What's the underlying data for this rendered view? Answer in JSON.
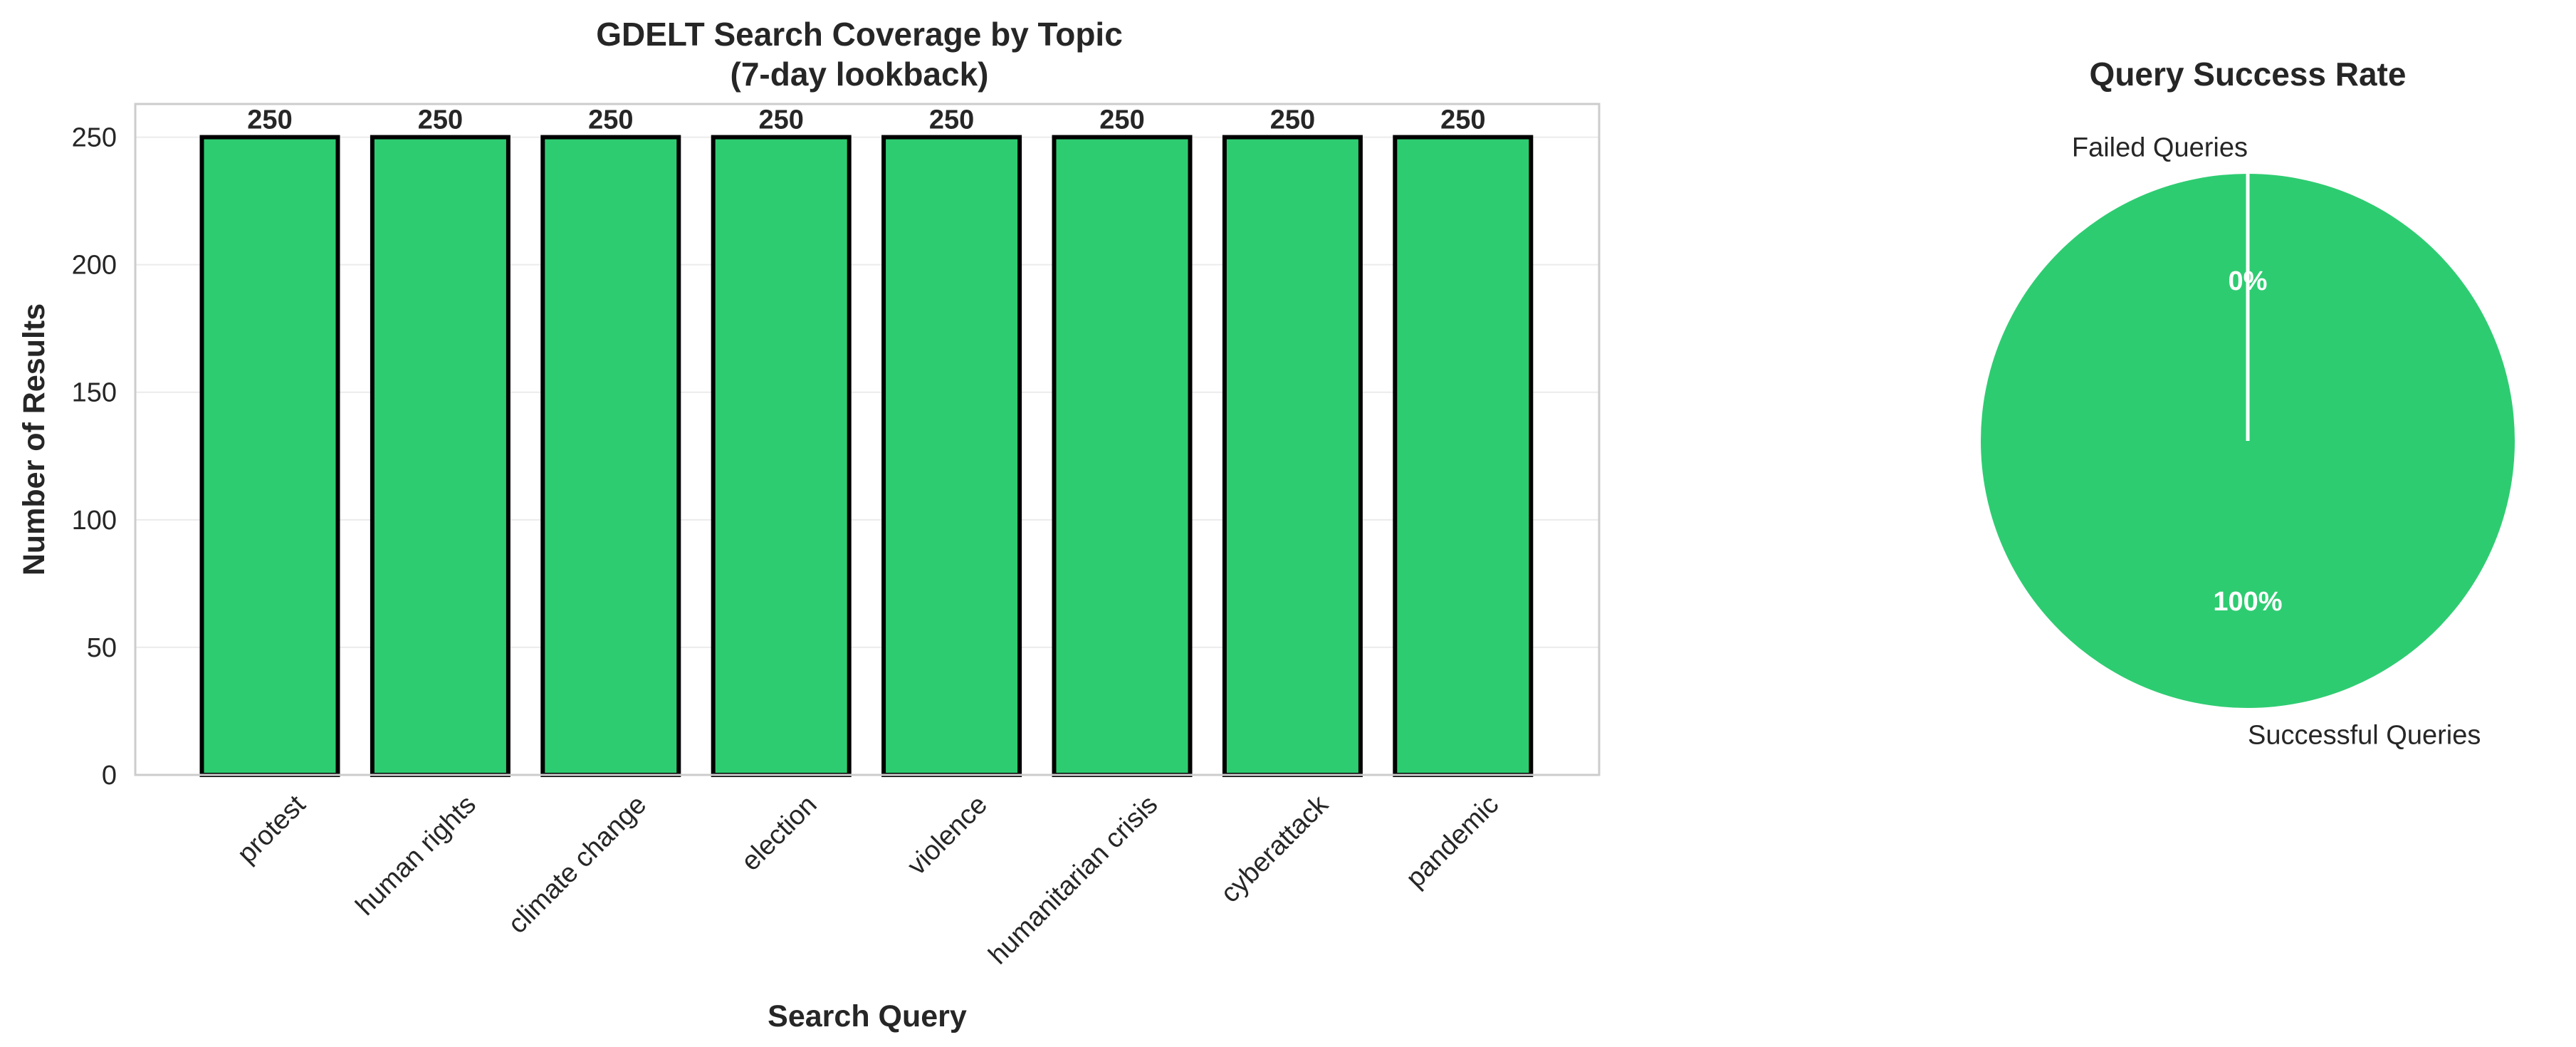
{
  "chart_data": [
    {
      "type": "bar",
      "title_lines": [
        "GDELT Search Coverage by Topic",
        "(7-day lookback)"
      ],
      "xlabel": "Search Query",
      "ylabel": "Number of Results",
      "categories": [
        "protest",
        "human rights",
        "climate change",
        "election",
        "violence",
        "humanitarian crisis",
        "cyberattack",
        "pandemic"
      ],
      "values": [
        250,
        250,
        250,
        250,
        250,
        250,
        250,
        250
      ],
      "data_labels": [
        "250",
        "250",
        "250",
        "250",
        "250",
        "250",
        "250",
        "250"
      ],
      "ylim": [
        0,
        263
      ],
      "yticks": [
        0,
        50,
        100,
        150,
        200,
        250
      ],
      "grid": true,
      "bar_color": "#2ecc71",
      "edge_color": "#000000"
    },
    {
      "type": "pie",
      "title": "Query Success Rate",
      "slices": [
        {
          "label": "Failed Queries",
          "value": 0,
          "pct_label": "0%",
          "color": "#e74c3c"
        },
        {
          "label": "Successful Queries",
          "value": 100,
          "pct_label": "100%",
          "color": "#2ecc71"
        }
      ],
      "start_angle_deg": 90,
      "wedge_edge_color": "#ffffff"
    }
  ]
}
